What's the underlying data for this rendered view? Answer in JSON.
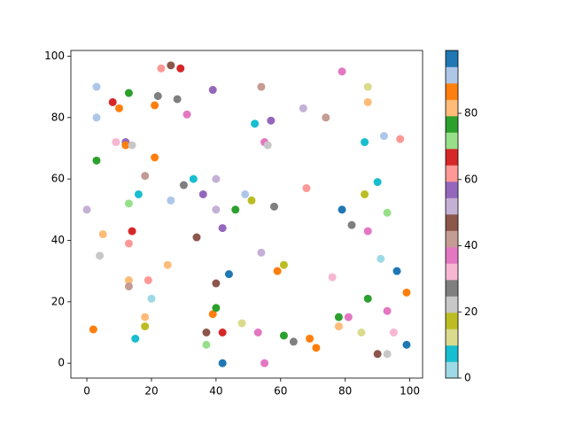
{
  "chart_data": {
    "type": "scatter",
    "x": [
      3,
      3,
      0,
      3,
      4,
      5,
      2,
      8,
      10,
      9,
      12,
      12,
      14,
      13,
      13,
      13,
      14,
      13,
      13,
      16,
      18,
      19,
      20,
      18,
      18,
      15,
      21,
      21,
      23,
      22,
      26,
      29,
      28,
      31,
      26,
      25,
      30,
      33,
      34,
      36,
      39,
      40,
      40,
      42,
      40,
      37,
      37,
      39,
      40,
      42,
      42,
      44,
      46,
      48,
      49,
      51,
      52,
      54,
      55,
      56,
      57,
      58,
      54,
      53,
      55,
      59,
      61,
      61,
      64,
      67,
      68,
      69,
      71,
      74,
      76,
      79,
      79,
      78,
      78,
      81,
      82,
      85,
      86,
      87,
      87,
      86,
      87,
      87,
      90,
      91,
      90,
      93,
      92,
      93,
      93,
      95,
      96,
      97,
      99,
      99
    ],
    "y": [
      90,
      80,
      50,
      66,
      35,
      42,
      11,
      85,
      83,
      72,
      72,
      71,
      71,
      88,
      52,
      39,
      43,
      27,
      25,
      55,
      61,
      27,
      21,
      15,
      12,
      8,
      84,
      67,
      96,
      87,
      97,
      96,
      86,
      81,
      53,
      32,
      58,
      60,
      41,
      55,
      89,
      60,
      50,
      44,
      26,
      10,
      6,
      16,
      18,
      10,
      0,
      29,
      50,
      13,
      55,
      53,
      78,
      90,
      72,
      71,
      79,
      51,
      36,
      10,
      0,
      30,
      32,
      9,
      7,
      83,
      57,
      8,
      5,
      80,
      28,
      95,
      50,
      15,
      12,
      15,
      45,
      10,
      72,
      90,
      85,
      55,
      43,
      21,
      59,
      34,
      3,
      3,
      74,
      49,
      17,
      10,
      30,
      73,
      23,
      6
    ],
    "c": [
      92,
      92,
      52,
      77,
      22,
      82,
      87,
      67,
      87,
      32,
      57,
      87,
      22,
      77,
      72,
      62,
      67,
      82,
      42,
      7,
      42,
      62,
      2,
      82,
      17,
      7,
      87,
      87,
      62,
      27,
      47,
      67,
      27,
      37,
      92,
      82,
      27,
      7,
      47,
      57,
      57,
      52,
      52,
      57,
      47,
      47,
      72,
      87,
      77,
      67,
      97,
      97,
      77,
      12,
      92,
      17,
      7,
      42,
      37,
      22,
      57,
      27,
      52,
      37,
      37,
      87,
      17,
      77,
      27,
      52,
      62,
      87,
      87,
      42,
      32,
      37,
      97,
      77,
      82,
      37,
      27,
      12,
      7,
      12,
      82,
      17,
      37,
      77,
      7,
      2,
      47,
      22,
      92,
      72,
      37,
      32,
      97,
      62,
      87,
      97
    ],
    "colormap": [
      "#9edae5",
      "#17becf",
      "#dbdb8d",
      "#bcbd22",
      "#c7c7c7",
      "#7f7f7f",
      "#f7b6d2",
      "#e377c2",
      "#c49c94",
      "#8c564b",
      "#c5b0d5",
      "#9467bd",
      "#ff9896",
      "#d62728",
      "#98df8a",
      "#2ca02c",
      "#ffbb78",
      "#ff7f0e",
      "#aec7e8",
      "#1f77b4"
    ],
    "clim": [
      0,
      99
    ],
    "cticks": [
      0,
      20,
      40,
      60,
      80
    ],
    "xlim": [
      -4.95,
      103.95
    ],
    "xticks": [
      0,
      20,
      40,
      60,
      80,
      100
    ],
    "ylim": [
      -4.85,
      101.85
    ],
    "yticks": [
      0,
      20,
      40,
      60,
      80,
      100
    ]
  }
}
